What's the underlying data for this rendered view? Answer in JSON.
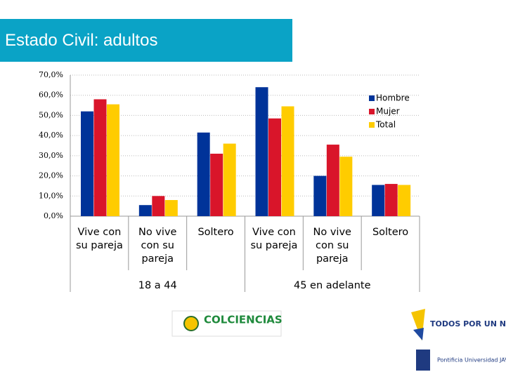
{
  "title": "Estado Civil: adultos",
  "chart_data": {
    "type": "bar",
    "categories": [
      "Vive con su pareja",
      "No vive con su pareja",
      "Soltero",
      "Vive con su pareja",
      "No vive con su pareja",
      "Soltero"
    ],
    "category_groups": [
      {
        "name": "18 a 44",
        "span": 3
      },
      {
        "name": "45 en adelante",
        "span": 3
      }
    ],
    "series": [
      {
        "name": "Hombre",
        "color": "#003399",
        "values": [
          52,
          5.5,
          41.5,
          64,
          20,
          15.5
        ]
      },
      {
        "name": "Mujer",
        "color": "#d9152a",
        "values": [
          58,
          10,
          31,
          48.5,
          35.5,
          16
        ]
      },
      {
        "name": "Total",
        "color": "#ffcc00",
        "values": [
          55.5,
          8,
          36,
          54.5,
          29.5,
          15.5
        ]
      }
    ],
    "ylim": [
      0,
      70
    ],
    "yticks": [
      {
        "value": 0,
        "label": "0,0%"
      },
      {
        "value": 10,
        "label": "10,0%"
      },
      {
        "value": 20,
        "label": "20,0%"
      },
      {
        "value": 30,
        "label": "30,0%"
      },
      {
        "value": 40,
        "label": "40,0%"
      },
      {
        "value": 50,
        "label": "50,0%"
      },
      {
        "value": 60,
        "label": "60,0%"
      },
      {
        "value": 70,
        "label": "70,0%"
      }
    ],
    "grid": true,
    "legend": "right"
  },
  "logos": [
    "COLCIENCIAS",
    "TODOS POR UN NUEVO PAÍS",
    "Pontificia Universidad JAVERIANA"
  ]
}
